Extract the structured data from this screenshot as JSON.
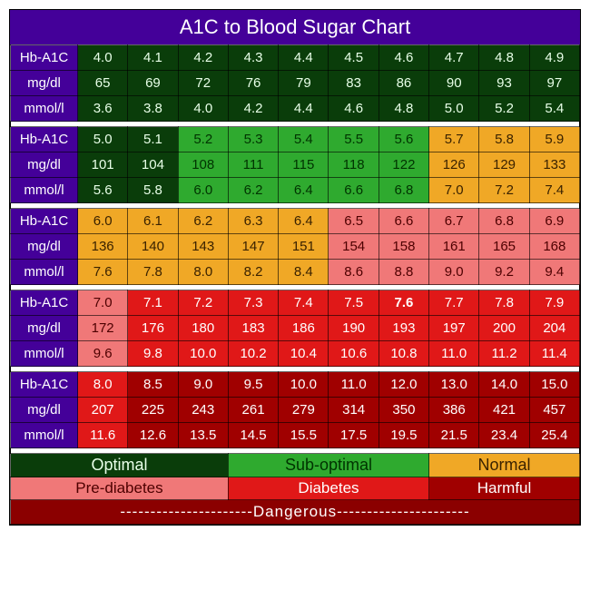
{
  "title": "A1C to Blood Sugar Chart",
  "row_labels": [
    "Hb-A1C",
    "mg/dl",
    "mmol/l"
  ],
  "colors": {
    "header_bg": "#440099",
    "optimal": {
      "bg": "#0a3d0a",
      "fg": "#e8ffe8"
    },
    "suboptimal": {
      "bg": "#2faa2f",
      "fg": "#003300"
    },
    "normal": {
      "bg": "#f0a826",
      "fg": "#3a2200"
    },
    "prediabetes": {
      "bg": "#f07878",
      "fg": "#4d0000"
    },
    "diabetes": {
      "bg": "#e01818",
      "fg": "#ffffff"
    },
    "harmful": {
      "bg": "#a00000",
      "fg": "#ffffff"
    },
    "dangerous_bg": "#8b0000"
  },
  "blocks": [
    {
      "a1c": [
        "4.0",
        "4.1",
        "4.2",
        "4.3",
        "4.4",
        "4.5",
        "4.6",
        "4.7",
        "4.8",
        "4.9"
      ],
      "mgdl": [
        "65",
        "69",
        "72",
        "76",
        "79",
        "83",
        "86",
        "90",
        "93",
        "97"
      ],
      "mmoll": [
        "3.6",
        "3.8",
        "4.0",
        "4.2",
        "4.4",
        "4.6",
        "4.8",
        "5.0",
        "5.2",
        "5.4"
      ],
      "zone": [
        "optimal",
        "optimal",
        "optimal",
        "optimal",
        "optimal",
        "optimal",
        "optimal",
        "optimal",
        "optimal",
        "optimal"
      ]
    },
    {
      "a1c": [
        "5.0",
        "5.1",
        "5.2",
        "5.3",
        "5.4",
        "5.5",
        "5.6",
        "5.7",
        "5.8",
        "5.9"
      ],
      "mgdl": [
        "101",
        "104",
        "108",
        "111",
        "115",
        "118",
        "122",
        "126",
        "129",
        "133"
      ],
      "mmoll": [
        "5.6",
        "5.8",
        "6.0",
        "6.2",
        "6.4",
        "6.6",
        "6.8",
        "7.0",
        "7.2",
        "7.4"
      ],
      "zone": [
        "optimal",
        "optimal",
        "suboptimal",
        "suboptimal",
        "suboptimal",
        "suboptimal",
        "suboptimal",
        "normal",
        "normal",
        "normal"
      ]
    },
    {
      "a1c": [
        "6.0",
        "6.1",
        "6.2",
        "6.3",
        "6.4",
        "6.5",
        "6.6",
        "6.7",
        "6.8",
        "6.9"
      ],
      "mgdl": [
        "136",
        "140",
        "143",
        "147",
        "151",
        "154",
        "158",
        "161",
        "165",
        "168"
      ],
      "mmoll": [
        "7.6",
        "7.8",
        "8.0",
        "8.2",
        "8.4",
        "8.6",
        "8.8",
        "9.0",
        "9.2",
        "9.4"
      ],
      "zone": [
        "normal",
        "normal",
        "normal",
        "normal",
        "normal",
        "prediabetes",
        "prediabetes",
        "prediabetes",
        "prediabetes",
        "prediabetes"
      ]
    },
    {
      "a1c": [
        "7.0",
        "7.1",
        "7.2",
        "7.3",
        "7.4",
        "7.5",
        "7.6",
        "7.7",
        "7.8",
        "7.9"
      ],
      "mgdl": [
        "172",
        "176",
        "180",
        "183",
        "186",
        "190",
        "193",
        "197",
        "200",
        "204"
      ],
      "mmoll": [
        "9.6",
        "9.8",
        "10.0",
        "10.2",
        "10.4",
        "10.6",
        "10.8",
        "11.0",
        "11.2",
        "11.4"
      ],
      "zone": [
        "prediabetes",
        "diabetes",
        "diabetes",
        "diabetes",
        "diabetes",
        "diabetes",
        "diabetes",
        "diabetes",
        "diabetes",
        "diabetes"
      ],
      "bold_col": 6
    },
    {
      "a1c": [
        "8.0",
        "8.5",
        "9.0",
        "9.5",
        "10.0",
        "11.0",
        "12.0",
        "13.0",
        "14.0",
        "15.0"
      ],
      "mgdl": [
        "207",
        "225",
        "243",
        "261",
        "279",
        "314",
        "350",
        "386",
        "421",
        "457"
      ],
      "mmoll": [
        "11.6",
        "12.6",
        "13.5",
        "14.5",
        "15.5",
        "17.5",
        "19.5",
        "21.5",
        "23.4",
        "25.4"
      ],
      "zone": [
        "diabetes",
        "harmful",
        "harmful",
        "harmful",
        "harmful",
        "harmful",
        "harmful",
        "harmful",
        "harmful",
        "harmful"
      ]
    }
  ],
  "legend": {
    "row1": [
      {
        "label": "Optimal",
        "zone": "optimal",
        "span": 4
      },
      {
        "label": "Sub-optimal",
        "zone": "suboptimal",
        "span": 4
      },
      {
        "label": "Normal",
        "zone": "normal",
        "span": 3
      }
    ],
    "row2": [
      {
        "label": "Pre-diabetes",
        "zone": "prediabetes",
        "span": 4
      },
      {
        "label": "Diabetes",
        "zone": "diabetes",
        "span": 4
      },
      {
        "label": "Harmful",
        "zone": "harmful",
        "span": 3
      }
    ],
    "danger_label": "----------------------Dangerous----------------------"
  }
}
